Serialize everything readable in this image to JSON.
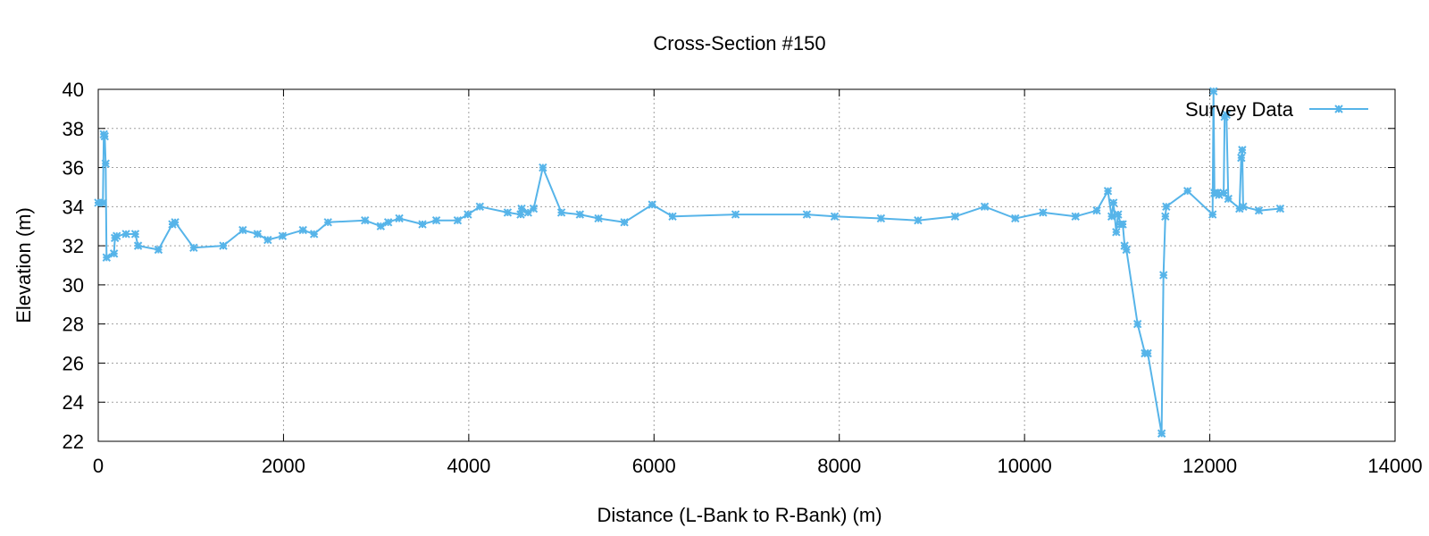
{
  "chart_data": {
    "type": "line",
    "title": "Cross-Section #150",
    "xlabel": "Distance (L-Bank to R-Bank) (m)",
    "ylabel": "Elevation (m)",
    "xlim": [
      0,
      14000
    ],
    "ylim": [
      22,
      40
    ],
    "xticks": [
      0,
      2000,
      4000,
      6000,
      8000,
      10000,
      12000,
      14000
    ],
    "yticks": [
      22,
      24,
      26,
      28,
      30,
      32,
      34,
      36,
      38,
      40
    ],
    "grid": true,
    "legend_position": "top-right",
    "series": [
      {
        "name": "Survey Data",
        "color": "#56b4e9",
        "marker": "asterisk",
        "x": [
          0,
          50,
          60,
          70,
          80,
          90,
          170,
          180,
          200,
          300,
          400,
          430,
          650,
          800,
          830,
          1030,
          1350,
          1560,
          1720,
          1830,
          1990,
          2210,
          2330,
          2480,
          2880,
          3050,
          3130,
          3250,
          3500,
          3650,
          3880,
          3990,
          4120,
          4420,
          4560,
          4570,
          4640,
          4700,
          4800,
          5000,
          5200,
          5400,
          5680,
          5980,
          6200,
          6880,
          7650,
          7950,
          8450,
          8850,
          9250,
          9570,
          9900,
          10200,
          10550,
          10780,
          10900,
          10940,
          10960,
          10990,
          11010,
          11040,
          11060,
          11080,
          11100,
          11220,
          11300,
          11330,
          11480,
          11500,
          11520,
          11530,
          11760,
          12030,
          12040,
          12050,
          12060,
          12080,
          12100,
          12150,
          12160,
          12180,
          12200,
          12320,
          12340,
          12350,
          12360,
          12530,
          12760
        ],
        "y": [
          34.2,
          34.2,
          37.7,
          37.6,
          36.2,
          31.4,
          31.6,
          32.4,
          32.5,
          32.6,
          32.6,
          32.0,
          31.8,
          33.1,
          33.2,
          31.9,
          32.0,
          32.8,
          32.6,
          32.3,
          32.5,
          32.8,
          32.6,
          33.2,
          33.3,
          33.0,
          33.2,
          33.4,
          33.1,
          33.3,
          33.3,
          33.6,
          34.0,
          33.7,
          33.6,
          33.9,
          33.7,
          33.9,
          36.0,
          33.7,
          33.6,
          33.4,
          33.2,
          34.1,
          33.5,
          33.6,
          33.6,
          33.5,
          33.4,
          33.3,
          33.5,
          34.0,
          33.4,
          33.7,
          33.5,
          33.8,
          34.8,
          33.5,
          34.2,
          32.7,
          33.6,
          33.1,
          33.1,
          32.0,
          31.8,
          28.0,
          26.5,
          26.5,
          22.4,
          30.5,
          33.5,
          34.0,
          34.8,
          33.6,
          39.9,
          34.7,
          34.7,
          34.7,
          34.6,
          34.7,
          38.6,
          38.7,
          34.4,
          33.9,
          36.5,
          36.9,
          34.0,
          33.8,
          33.9
        ]
      }
    ]
  }
}
